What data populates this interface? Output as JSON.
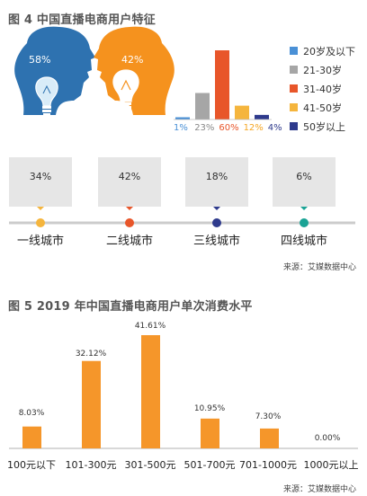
{
  "colors": {
    "blue_head": "#2e72b0",
    "orange_head": "#f5921e",
    "lightblue": "#4a90d6",
    "gray": "#a6a6a6",
    "red": "#e8562a",
    "amber": "#f5b53d",
    "navy": "#2e3a8c",
    "teal": "#1aa395",
    "bar5": "#f5962a"
  },
  "figure4": {
    "title": "图 4  中国直播电商用户特征",
    "icons": [
      "head-silhouette-icon",
      "light-bulb-icon"
    ],
    "source": "来源：艾媒数据中心",
    "gender": [
      {
        "name": "",
        "value": "58%",
        "color": "#2e72b0"
      },
      {
        "name": "",
        "value": "42%",
        "color": "#f5921e"
      }
    ]
  },
  "figure5": {
    "title": "图 5 2019 年中国直播电商用户单次消费水平",
    "source": "来源：艾媒数据中心"
  },
  "chart_data": [
    {
      "type": "bar",
      "title": "",
      "categories": [
        "20岁及以下",
        "21-30岁",
        "31-40岁",
        "41-50岁",
        "50岁以上"
      ],
      "values": [
        1,
        23,
        60,
        12,
        4
      ],
      "value_labels": [
        "1%",
        "23%",
        "60%",
        "12%",
        "4%"
      ],
      "colors": [
        "#4a90d6",
        "#a6a6a6",
        "#e8562a",
        "#f5b53d",
        "#2e3a8c"
      ],
      "legend": [
        "20岁及以下",
        "21-30岁",
        "31-40岁",
        "41-50岁",
        "50岁以上"
      ],
      "legend_position": "right",
      "ylim": [
        0,
        60
      ]
    },
    {
      "type": "bar",
      "title": "",
      "categories": [
        "一线城市",
        "二线城市",
        "三线城市",
        "四线城市"
      ],
      "values": [
        34,
        42,
        18,
        6
      ],
      "value_labels": [
        "34%",
        "42%",
        "18%",
        "6%"
      ],
      "colors": [
        "#f5b53d",
        "#e8562a",
        "#2e3a8c",
        "#1aa395"
      ],
      "ylim": [
        0,
        100
      ]
    },
    {
      "type": "bar",
      "title": "",
      "categories": [
        "100元以下",
        "101-300元",
        "301-500元",
        "501-700元",
        "701-1000元",
        "1000元以上"
      ],
      "values": [
        8.03,
        32.12,
        41.61,
        10.95,
        7.3,
        0.0
      ],
      "value_labels": [
        "8.03%",
        "32.12%",
        "41.61%",
        "10.95%",
        "7.30%",
        "0.00%"
      ],
      "xlabel": "",
      "ylabel": "",
      "ylim": [
        0,
        41.61
      ],
      "grid": false
    }
  ]
}
